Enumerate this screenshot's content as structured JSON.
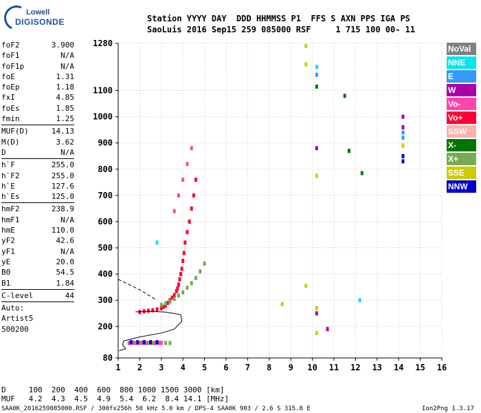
{
  "logo": {
    "line1": "Lowell",
    "line2": "DIGISONDE"
  },
  "header": {
    "line1": "Station YYYY DAY  DDD HHMMSS P1  FFS S AXN PPS IGA PS",
    "line2": "SaoLuis 2016 Sep15 259 085000 RSF     1 715 100 00- 11"
  },
  "params": [
    [
      {
        "label": "foF2",
        "value": "3.900"
      },
      {
        "label": "foF1",
        "value": "N/A"
      },
      {
        "label": "foF1p",
        "value": "N/A"
      },
      {
        "label": "foE",
        "value": "1.31"
      },
      {
        "label": "foEp",
        "value": "1.18"
      },
      {
        "label": "fxI",
        "value": "4.85"
      },
      {
        "label": "foEs",
        "value": "1.85"
      },
      {
        "label": "fmin",
        "value": "1.25"
      }
    ],
    [
      {
        "label": "MUF(D)",
        "value": "14.13"
      },
      {
        "label": "M(D)",
        "value": "3.62"
      },
      {
        "label": "D",
        "value": "N/A"
      }
    ],
    [
      {
        "label": "h`F",
        "value": "255.0"
      },
      {
        "label": "h`F2",
        "value": "255.0"
      },
      {
        "label": "h`E",
        "value": "127.6"
      },
      {
        "label": "h`Es",
        "value": "125.0"
      }
    ],
    [
      {
        "label": "hmF2",
        "value": "238.9"
      },
      {
        "label": "hmF1",
        "value": "N/A"
      },
      {
        "label": "hmE",
        "value": "110.0"
      },
      {
        "label": "yF2",
        "value": "42.6"
      },
      {
        "label": "yF1",
        "value": "N/A"
      },
      {
        "label": "yE",
        "value": "20.0"
      },
      {
        "label": "B0",
        "value": "54.5"
      },
      {
        "label": "B1",
        "value": "1.84"
      }
    ],
    [
      {
        "label": "C-level",
        "value": "44"
      }
    ]
  ],
  "autoscale": {
    "line1": "Auto:",
    "line2": "Artist5",
    "line3": "500200"
  },
  "legend": [
    {
      "label": "NoVal",
      "color": "#808080"
    },
    {
      "label": "NNE",
      "color": "#00e5ee"
    },
    {
      "label": "E",
      "color": "#3399ff"
    },
    {
      "label": "W",
      "color": "#aa00aa"
    },
    {
      "label": "Vo-",
      "color": "#ff44aa"
    },
    {
      "label": "Vo+",
      "color": "#ff0033"
    },
    {
      "label": "SSW",
      "color": "#ffb0b0"
    },
    {
      "label": "X-",
      "color": "#007700"
    },
    {
      "label": "X+",
      "color": "#77aa55"
    },
    {
      "label": "SSE",
      "color": "#cccc00"
    },
    {
      "label": "NNW",
      "color": "#0000cc"
    }
  ],
  "footer": {
    "row_d": "D     100  200  400  600  800 1000 1500 3000 [km]",
    "row_muf": "MUF   4.2  4.3  4.5  4.9  5.4  6.2  8.4 14.1 [MHz]",
    "info_left": "SAA0K_2016259085000.RSF / 300fx256h 50 kHz 5.0 km / DPS-4 SAA0K 903 / 2.6 S 315.8 E",
    "info_right": "Ion2Png 1.3.17"
  },
  "chart_data": {
    "type": "scatter",
    "title": "",
    "xlabel": "",
    "ylabel": "",
    "xlim": [
      1,
      16
    ],
    "ylim": [
      80,
      1280
    ],
    "x_ticks": [
      1,
      2,
      3,
      4,
      5,
      6,
      7,
      8,
      9,
      10,
      11,
      12,
      13,
      14,
      15,
      16
    ],
    "y_ticks": [
      80,
      200,
      300,
      400,
      500,
      600,
      700,
      800,
      900,
      1000,
      1100,
      1280
    ],
    "grid": true,
    "series": [
      {
        "name": "Vo+",
        "color": "#ff0033",
        "x": [
          2.0,
          2.2,
          2.4,
          2.6,
          2.8,
          3.0,
          3.1,
          3.2,
          3.3,
          3.4,
          3.5,
          3.6,
          3.7,
          3.75,
          3.8,
          3.85,
          3.9,
          3.95,
          4.0,
          4.05,
          4.1,
          4.2,
          4.3,
          4.4,
          4.5,
          4.6
        ],
        "y": [
          255,
          258,
          260,
          262,
          265,
          270,
          275,
          280,
          290,
          300,
          310,
          320,
          335,
          345,
          360,
          380,
          400,
          420,
          450,
          480,
          520,
          560,
          600,
          650,
          700,
          760
        ]
      },
      {
        "name": "X+",
        "color": "#77aa55",
        "x": [
          3.0,
          3.2,
          3.4,
          3.6,
          3.8,
          4.0,
          4.2,
          4.4,
          4.6,
          4.8,
          5.0,
          1.6,
          1.8,
          2.0,
          2.2,
          2.4,
          2.6,
          2.8,
          3.0,
          3.2,
          3.4
        ],
        "y": [
          282,
          288,
          295,
          305,
          318,
          330,
          348,
          365,
          385,
          410,
          440,
          137,
          137,
          137,
          137,
          137,
          137,
          137,
          137,
          137,
          137
        ]
      },
      {
        "name": "Vo-",
        "color": "#ff44aa",
        "x": [
          1.5,
          1.7,
          1.9,
          2.1,
          2.3,
          2.5,
          2.7,
          2.9,
          3.0,
          3.6,
          3.8,
          4.0,
          4.2,
          4.4
        ],
        "y": [
          137,
          138,
          137,
          138,
          137,
          138,
          137,
          138,
          137,
          640,
          700,
          760,
          820,
          880
        ]
      },
      {
        "name": "NNW",
        "color": "#0000cc",
        "x": [
          1.6,
          1.9,
          2.2,
          2.5,
          2.8,
          14.2,
          14.2,
          14.2,
          14.2
        ],
        "y": [
          140,
          140,
          140,
          140,
          140,
          830,
          850,
          940,
          960
        ]
      },
      {
        "name": "SSE",
        "color": "#cccc00",
        "x": [
          9.7,
          9.7,
          10.2,
          10.2,
          9.7,
          8.6,
          10.2,
          14.2
        ],
        "y": [
          1270,
          1200,
          270,
          175,
          355,
          285,
          775,
          890
        ]
      },
      {
        "name": "X-",
        "color": "#007700",
        "x": [
          10.2,
          11.5,
          11.7,
          12.3
        ],
        "y": [
          1115,
          1080,
          870,
          785
        ]
      },
      {
        "name": "W",
        "color": "#aa00aa",
        "x": [
          10.2,
          10.2,
          10.7,
          14.2,
          14.2
        ],
        "y": [
          880,
          250,
          190,
          1000,
          960
        ]
      },
      {
        "name": "NNE",
        "color": "#00e5ee",
        "x": [
          10.2,
          12.2,
          2.8
        ],
        "y": [
          1190,
          300,
          520
        ]
      },
      {
        "name": "E",
        "color": "#3399ff",
        "x": [
          10.2,
          14.2,
          14.2
        ],
        "y": [
          1160,
          920,
          940
        ]
      }
    ],
    "annotations": [
      {
        "kind": "dashed-curve",
        "points": [
          [
            1.0,
            380
          ],
          [
            1.5,
            360
          ],
          [
            2.0,
            340
          ],
          [
            2.5,
            315
          ],
          [
            2.8,
            300
          ]
        ]
      },
      {
        "kind": "solid-profile",
        "points": [
          [
            1.05,
            108
          ],
          [
            1.35,
            115
          ],
          [
            1.2,
            130
          ],
          [
            1.25,
            145
          ],
          [
            2.0,
            160
          ],
          [
            3.0,
            175
          ],
          [
            3.6,
            190
          ],
          [
            3.95,
            220
          ],
          [
            3.9,
            245
          ],
          [
            3.2,
            255
          ],
          [
            2.5,
            258
          ],
          [
            1.8,
            256
          ]
        ]
      }
    ]
  }
}
